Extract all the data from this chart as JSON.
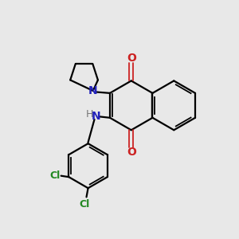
{
  "bg_color": "#e8e8e8",
  "bond_color": "#000000",
  "nitrogen_color": "#2222bb",
  "oxygen_color": "#cc2222",
  "chlorine_color": "#228822",
  "figsize": [
    3.0,
    3.0
  ],
  "dpi": 100,
  "xlim": [
    0,
    10
  ],
  "ylim": [
    0,
    10
  ]
}
